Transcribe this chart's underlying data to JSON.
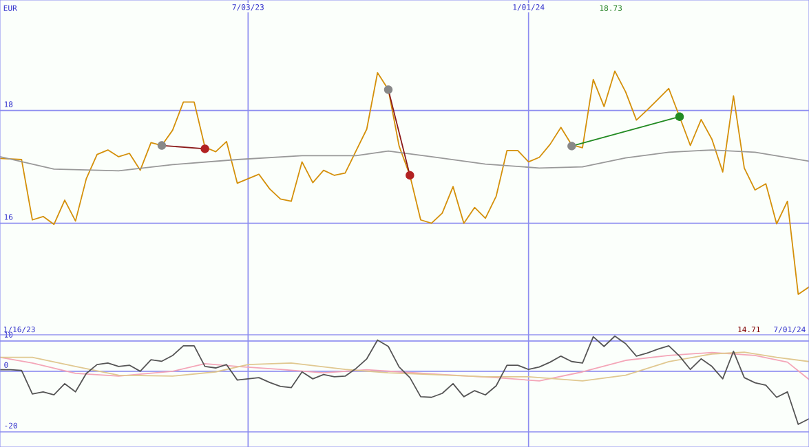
{
  "chart_data": [
    {
      "type": "line",
      "ylabel": "EUR",
      "x": [
        "2023-01-23",
        "2023-01-30",
        "2023-02-06",
        "2023-02-13",
        "2023-02-20",
        "2023-02-27",
        "2023-03-06",
        "2023-03-13",
        "2023-03-20",
        "2023-03-27",
        "2023-04-03",
        "2023-04-10",
        "2023-04-17",
        "2023-04-24",
        "2023-05-01",
        "2023-05-08",
        "2023-05-15",
        "2023-05-22",
        "2023-05-29",
        "2023-06-05",
        "2023-06-12",
        "2023-06-19",
        "2023-06-26",
        "2023-07-03",
        "2023-07-10",
        "2023-07-17",
        "2023-07-24",
        "2023-07-31",
        "2023-08-07",
        "2023-08-14",
        "2023-08-21",
        "2023-08-28",
        "2023-09-04",
        "2023-09-11",
        "2023-09-18",
        "2023-09-25",
        "2023-10-02",
        "2023-10-09",
        "2023-10-16",
        "2023-10-23",
        "2023-10-30",
        "2023-11-06",
        "2023-11-13",
        "2023-11-20",
        "2023-11-27",
        "2023-12-04",
        "2023-12-11",
        "2023-12-18",
        "2023-12-25",
        "2024-01-01",
        "2024-01-08",
        "2024-01-15",
        "2024-01-22",
        "2024-01-29",
        "2024-02-05",
        "2024-02-12",
        "2024-02-19",
        "2024-02-26",
        "2024-03-04",
        "2024-03-11",
        "2024-03-18",
        "2024-03-25",
        "2024-04-01",
        "2024-04-08",
        "2024-04-15",
        "2024-04-22",
        "2024-04-29",
        "2024-05-06",
        "2024-05-13",
        "2024-05-20",
        "2024-05-27",
        "2024-06-03",
        "2024-06-10",
        "2024-06-17",
        "2024-06-24",
        "2024-07-01"
      ],
      "series": [
        {
          "color": "#d4900a",
          "values": [
            17.15,
            17.14,
            17.13,
            16.06,
            16.12,
            15.98,
            16.41,
            16.04,
            16.79,
            17.22,
            17.3,
            17.18,
            17.24,
            16.94,
            17.43,
            17.38,
            17.65,
            18.15,
            18.15,
            17.35,
            17.27,
            17.45,
            16.71,
            16.79,
            16.87,
            16.61,
            16.43,
            16.39,
            17.09,
            16.72,
            16.94,
            16.85,
            16.89,
            17.28,
            17.67,
            18.67,
            18.37,
            17.37,
            16.85,
            16.06,
            16.0,
            16.18,
            16.65,
            16.0,
            16.28,
            16.09,
            16.48,
            17.29,
            17.29,
            17.09,
            17.17,
            17.4,
            17.7,
            17.39,
            17.34,
            18.55,
            18.07,
            18.7,
            18.33,
            17.83,
            18.01,
            18.2,
            18.39,
            17.89,
            17.38,
            17.84,
            17.49,
            16.91,
            18.26,
            16.98,
            16.59,
            16.7,
            15.99,
            16.39,
            14.74,
            14.87
          ]
        },
        {
          "color": "#999999",
          "x": [
            "2023-01-23",
            "2023-02-27",
            "2023-04-10",
            "2023-05-15",
            "2023-06-26",
            "2023-08-07",
            "2023-09-11",
            "2023-10-02",
            "2023-10-30",
            "2023-12-04",
            "2024-01-08",
            "2024-02-05",
            "2024-03-04",
            "2024-04-01",
            "2024-04-29",
            "2024-05-27",
            "2024-07-01"
          ],
          "values": [
            17.18,
            16.96,
            16.93,
            17.04,
            17.13,
            17.2,
            17.2,
            17.28,
            17.18,
            17.05,
            16.98,
            17.0,
            17.16,
            17.26,
            17.3,
            17.26,
            17.1
          ]
        },
        {
          "color": "#8b1a1a",
          "marker": "circle",
          "colors": [
            "#888888",
            "#b22222"
          ],
          "x": [
            "2023-05-08",
            "2023-06-05"
          ],
          "values": [
            17.38,
            17.32
          ]
        },
        {
          "color": "#8b1a1a",
          "marker": "circle",
          "colors": [
            "#888888",
            "#b22222"
          ],
          "x": [
            "2023-10-02",
            "2023-10-16"
          ],
          "values": [
            18.37,
            16.85
          ]
        },
        {
          "color": "#228b22",
          "marker": "circle",
          "colors": [
            "#888888",
            "#228b22"
          ],
          "x": [
            "2024-01-29",
            "2024-04-08"
          ],
          "values": [
            17.37,
            17.89
          ]
        }
      ],
      "xlim": [
        "2023-01-23",
        "2024-07-01"
      ],
      "xticks": [
        {
          "value": "2023-07-03",
          "label": "7/03/23"
        },
        {
          "value": "2024-01-01",
          "label": "1/01/24"
        }
      ],
      "ylim": [
        14.02,
        19.96
      ],
      "yticks": [
        16,
        18
      ],
      "grid": true,
      "annotations": [
        "18.73"
      ]
    },
    {
      "type": "line",
      "x": [
        "2023-01-23",
        "2023-01-30",
        "2023-02-06",
        "2023-02-13",
        "2023-02-20",
        "2023-02-27",
        "2023-03-06",
        "2023-03-13",
        "2023-03-20",
        "2023-03-27",
        "2023-04-03",
        "2023-04-10",
        "2023-04-17",
        "2023-04-24",
        "2023-05-01",
        "2023-05-08",
        "2023-05-15",
        "2023-05-22",
        "2023-05-29",
        "2023-06-05",
        "2023-06-12",
        "2023-06-19",
        "2023-06-26",
        "2023-07-03",
        "2023-07-10",
        "2023-07-17",
        "2023-07-24",
        "2023-07-31",
        "2023-08-07",
        "2023-08-14",
        "2023-08-21",
        "2023-08-28",
        "2023-09-04",
        "2023-09-11",
        "2023-09-18",
        "2023-09-25",
        "2023-10-02",
        "2023-10-09",
        "2023-10-16",
        "2023-10-23",
        "2023-10-30",
        "2023-11-06",
        "2023-11-13",
        "2023-11-20",
        "2023-11-27",
        "2023-12-04",
        "2023-12-11",
        "2023-12-18",
        "2023-12-25",
        "2024-01-01",
        "2024-01-08",
        "2024-01-15",
        "2024-01-22",
        "2024-01-29",
        "2024-02-05",
        "2024-02-12",
        "2024-02-19",
        "2024-02-26",
        "2024-03-04",
        "2024-03-11",
        "2024-03-18",
        "2024-03-25",
        "2024-04-01",
        "2024-04-08",
        "2024-04-15",
        "2024-04-22",
        "2024-04-29",
        "2024-05-06",
        "2024-05-13",
        "2024-05-20",
        "2024-05-27",
        "2024-06-03",
        "2024-06-10",
        "2024-06-17",
        "2024-06-24",
        "2024-07-01"
      ],
      "series": [
        {
          "color": "#f4a6b8",
          "x": [
            "2023-01-23",
            "2023-02-13",
            "2023-03-13",
            "2023-04-10",
            "2023-05-15",
            "2023-06-05",
            "2023-06-26",
            "2023-07-24",
            "2023-08-21",
            "2023-09-18",
            "2023-10-09",
            "2023-11-06",
            "2023-12-11",
            "2024-01-08",
            "2024-02-05",
            "2024-03-04",
            "2024-04-01",
            "2024-04-29",
            "2024-05-27",
            "2024-06-17",
            "2024-07-01"
          ],
          "values": [
            4.6,
            2.7,
            -0.7,
            -1.6,
            0.0,
            2.5,
            1.6,
            0.6,
            -0.5,
            0.5,
            -0.2,
            -1.1,
            -2.1,
            -3.2,
            -0.2,
            3.6,
            5.2,
            6.2,
            5.2,
            3.0,
            -2.7
          ]
        },
        {
          "color": "#e0c890",
          "x": [
            "2023-01-23",
            "2023-02-13",
            "2023-03-13",
            "2023-04-10",
            "2023-05-15",
            "2023-06-12",
            "2023-07-03",
            "2023-07-31",
            "2023-09-04",
            "2023-10-02",
            "2023-10-30",
            "2023-12-04",
            "2024-01-01",
            "2024-02-05",
            "2024-03-04",
            "2024-04-01",
            "2024-04-29",
            "2024-05-20",
            "2024-06-10",
            "2024-07-01"
          ],
          "values": [
            4.6,
            4.6,
            1.6,
            -1.3,
            -1.6,
            -0.2,
            2.2,
            2.7,
            0.6,
            -0.5,
            -1.1,
            -1.8,
            -1.8,
            -3.2,
            -1.3,
            3.2,
            5.7,
            6.3,
            4.6,
            3.2
          ]
        },
        {
          "color": "#555555",
          "values": [
            0.5,
            0.5,
            0.3,
            -7.5,
            -6.8,
            -7.8,
            -4.1,
            -6.8,
            -0.7,
            2.2,
            2.7,
            1.6,
            2.0,
            0.0,
            3.8,
            3.3,
            5.2,
            8.4,
            8.4,
            1.6,
            1.1,
            2.2,
            -2.9,
            -2.5,
            -2.1,
            -3.7,
            -5.0,
            -5.4,
            -0.2,
            -2.5,
            -1.1,
            -1.8,
            -1.6,
            0.9,
            4.1,
            10.3,
            8.2,
            1.4,
            -2.1,
            -8.4,
            -8.6,
            -7.3,
            -4.1,
            -8.4,
            -6.4,
            -7.8,
            -4.8,
            2.0,
            2.0,
            0.6,
            1.4,
            3.0,
            5.0,
            3.2,
            2.7,
            11.4,
            8.2,
            11.6,
            9.1,
            5.0,
            6.0,
            7.3,
            8.4,
            5.0,
            0.6,
            4.1,
            1.6,
            -2.5,
            6.6,
            -2.1,
            -3.8,
            -4.6,
            -8.6,
            -6.8,
            -17.5,
            -15.7
          ]
        }
      ],
      "xlim": [
        "2023-01-23",
        "2024-07-01"
      ],
      "xticks": [
        {
          "value": "2023-07-03",
          "label": null
        },
        {
          "value": "2024-01-01",
          "label": null
        }
      ],
      "ylim": [
        -25,
        12
      ],
      "yticks": [
        -20,
        0,
        10
      ],
      "grid": true,
      "tick_labels": "y",
      "annotations": [
        "1/16/23",
        "14.71",
        "7/01/24"
      ]
    }
  ]
}
